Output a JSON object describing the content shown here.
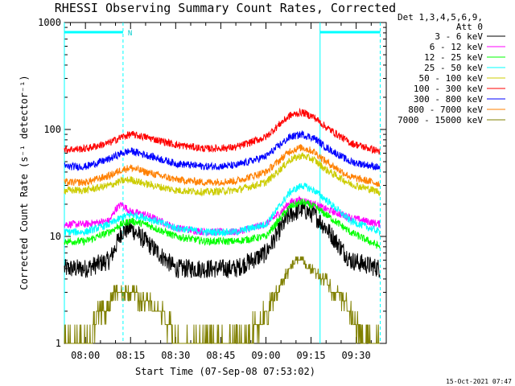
{
  "chart_data": {
    "type": "line",
    "title": "RHESSI Observing Summary Count Rates, Corrected",
    "xlabel": "Start Time (07-Sep-08 07:53:02)",
    "ylabel": "Corrected Count Rate (s⁻¹ detector⁻¹)",
    "y_scale": "log",
    "ylim": [
      1,
      1000
    ],
    "xlim_minutes": [
      -7,
      100
    ],
    "x_tick_labels": [
      "08:00",
      "08:15",
      "08:30",
      "08:45",
      "09:00",
      "09:15",
      "09:30"
    ],
    "x_tick_minutes": [
      0,
      15,
      30,
      45,
      60,
      75,
      90
    ],
    "y_tick_labels": [
      "1",
      "10",
      "100",
      "1000"
    ],
    "y_tick_values": [
      1,
      10,
      100,
      1000
    ],
    "legend_header": [
      "Det 1,3,4,5,6,9,",
      "Att 0"
    ],
    "vertical_markers_minutes": [
      -7,
      12.5,
      78,
      98
    ],
    "cyan_bars": [
      {
        "from_minutes": -7,
        "to_minutes": 12.5,
        "label": "N"
      },
      {
        "from_minutes": 78,
        "to_minutes": 98,
        "label": ""
      }
    ],
    "series": [
      {
        "name": "3 - 6 keV",
        "color": "#000000",
        "x_minutes": [
          -7,
          0,
          8,
          10,
          12,
          15,
          20,
          30,
          40,
          50,
          60,
          65,
          68,
          72,
          76,
          80,
          88,
          98
        ],
        "values": [
          5,
          5,
          6,
          8,
          11,
          12,
          9,
          5,
          5,
          5,
          7,
          12,
          16,
          18,
          16,
          12,
          6,
          5
        ]
      },
      {
        "name": "6 - 12 keV",
        "color": "#ff00ff",
        "x_minutes": [
          -7,
          0,
          8,
          10,
          12,
          15,
          20,
          30,
          40,
          50,
          60,
          65,
          68,
          72,
          76,
          80,
          88,
          98
        ],
        "values": [
          13,
          13,
          14,
          18,
          20,
          17,
          16,
          12,
          11,
          11,
          13,
          17,
          21,
          22,
          20,
          18,
          15,
          13
        ]
      },
      {
        "name": "12 - 25 keV",
        "color": "#00ff00",
        "x_minutes": [
          -7,
          0,
          8,
          12,
          15,
          20,
          30,
          40,
          50,
          60,
          65,
          68,
          72,
          76,
          80,
          88,
          98
        ],
        "values": [
          9,
          9,
          11,
          13,
          14,
          13,
          10,
          9,
          9,
          10,
          15,
          19,
          21,
          19,
          16,
          11,
          8
        ]
      },
      {
        "name": "25 - 50 keV",
        "color": "#00ffff",
        "x_minutes": [
          -7,
          0,
          8,
          12,
          15,
          20,
          30,
          40,
          50,
          60,
          65,
          68,
          72,
          76,
          80,
          88,
          98
        ],
        "values": [
          11,
          11,
          13,
          15,
          16,
          15,
          12,
          11,
          11,
          13,
          20,
          26,
          30,
          27,
          22,
          14,
          11
        ]
      },
      {
        "name": "50 - 100 keV",
        "color": "#cccc00",
        "x_minutes": [
          -7,
          0,
          8,
          12,
          15,
          20,
          30,
          40,
          50,
          60,
          65,
          68,
          72,
          76,
          80,
          88,
          98
        ],
        "values": [
          27,
          27,
          30,
          33,
          34,
          31,
          27,
          26,
          27,
          32,
          43,
          52,
          57,
          52,
          42,
          31,
          26
        ]
      },
      {
        "name": "100 - 300 keV",
        "color": "#ff0000",
        "x_minutes": [
          -7,
          0,
          8,
          12,
          15,
          20,
          30,
          40,
          50,
          60,
          65,
          68,
          72,
          76,
          80,
          88,
          98
        ],
        "values": [
          65,
          66,
          75,
          85,
          90,
          85,
          72,
          66,
          68,
          85,
          115,
          135,
          145,
          130,
          105,
          75,
          62
        ]
      },
      {
        "name": "300 - 800 keV",
        "color": "#0000ff",
        "x_minutes": [
          -7,
          0,
          8,
          12,
          15,
          20,
          30,
          40,
          50,
          60,
          65,
          68,
          72,
          76,
          80,
          88,
          98
        ],
        "values": [
          45,
          45,
          53,
          60,
          63,
          58,
          48,
          45,
          46,
          56,
          73,
          85,
          90,
          83,
          68,
          50,
          44
        ]
      },
      {
        "name": "800 - 7000 keV",
        "color": "#ff8000",
        "x_minutes": [
          -7,
          0,
          8,
          12,
          15,
          20,
          30,
          40,
          50,
          60,
          65,
          68,
          72,
          76,
          80,
          88,
          98
        ],
        "values": [
          32,
          32,
          37,
          42,
          44,
          40,
          34,
          32,
          33,
          40,
          53,
          63,
          68,
          62,
          50,
          36,
          31
        ]
      },
      {
        "name": "7000 - 15000 keV",
        "color": "#808000",
        "x_minutes": [
          -7,
          2,
          4,
          6,
          8,
          10,
          12,
          15,
          20,
          25,
          28,
          30,
          40,
          50,
          55,
          58,
          60,
          62,
          64,
          66,
          68,
          70,
          72,
          74,
          76,
          78,
          80,
          82,
          84,
          86,
          88,
          90,
          92,
          94,
          98
        ],
        "values": [
          1,
          1,
          2,
          2,
          2.5,
          3,
          3,
          3,
          2.5,
          2,
          1.5,
          1,
          1,
          1,
          1.2,
          1.5,
          2,
          2.5,
          3,
          4,
          5,
          6,
          6,
          5,
          5,
          4,
          4,
          3,
          3,
          2.5,
          2,
          1.5,
          1.2,
          1,
          1
        ]
      }
    ]
  },
  "footer": {
    "timestamp": "15-Oct-2021 07:47"
  }
}
